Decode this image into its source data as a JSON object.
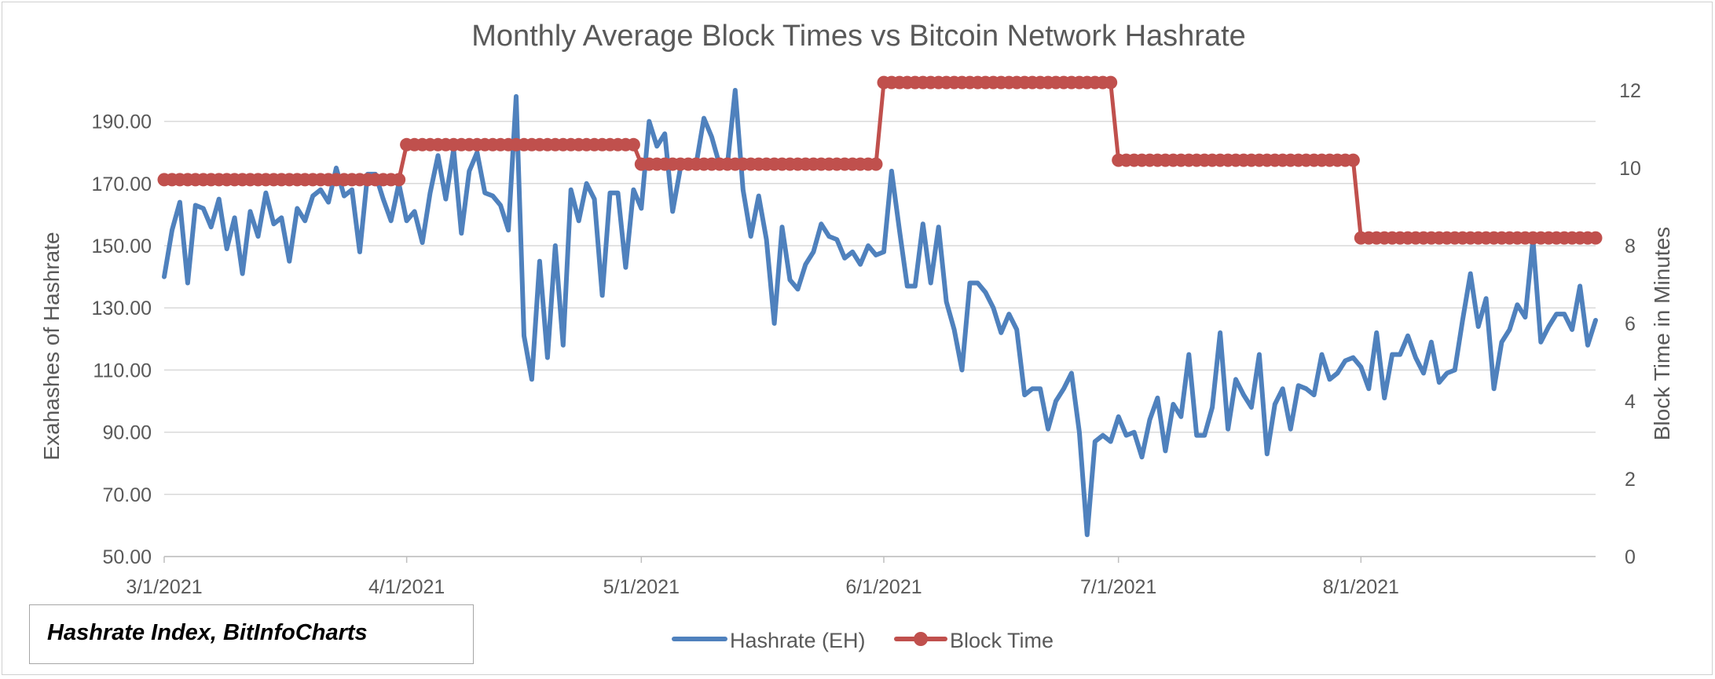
{
  "chart_data": {
    "type": "line",
    "title": "Monthly Average Block Times vs Bitcoin Network Hashrate",
    "ylabel": "Exahashes of Hashrate",
    "y2label": "Block Time in Minutes",
    "xlim": [
      "3/1/2021",
      "8/31/2021"
    ],
    "ylim": [
      50,
      200
    ],
    "y2lim": [
      0,
      12
    ],
    "y_ticks": [
      "50.00",
      "70.00",
      "90.00",
      "110.00",
      "130.00",
      "150.00",
      "170.00",
      "190.00"
    ],
    "y2_ticks": [
      "0",
      "2",
      "4",
      "6",
      "8",
      "10",
      "12"
    ],
    "x_ticks": [
      "3/1/2021",
      "4/1/2021",
      "5/1/2021",
      "6/1/2021",
      "7/1/2021",
      "8/1/2021"
    ],
    "grid": "horizontal",
    "legend": "bottom",
    "series": [
      {
        "name": "Hashrate (EH)",
        "axis": "left",
        "color": "#4f81bd",
        "x_start": "3/1/2021",
        "values": [
          140,
          155,
          164,
          138,
          163,
          162,
          156,
          165,
          149,
          159,
          141,
          161,
          153,
          167,
          157,
          159,
          145,
          162,
          158,
          166,
          168,
          164,
          175,
          166,
          168,
          148,
          173,
          173,
          165,
          158,
          170,
          158,
          161,
          151,
          167,
          179,
          165,
          181,
          154,
          174,
          180,
          167,
          166,
          163,
          155,
          198,
          121,
          107,
          145,
          114,
          150,
          118,
          168,
          158,
          170,
          165,
          134,
          167,
          167,
          143,
          168,
          162,
          190,
          182,
          186,
          161,
          175,
          176,
          176,
          191,
          185,
          176,
          176,
          200,
          168,
          153,
          166,
          152,
          125,
          156,
          139,
          136,
          144,
          148,
          157,
          153,
          152,
          146,
          148,
          144,
          150,
          147,
          148,
          174,
          155,
          137,
          137,
          157,
          138,
          156,
          132,
          123,
          110,
          138,
          138,
          135,
          130,
          122,
          128,
          123,
          102,
          104,
          104,
          91,
          100,
          104,
          109,
          90,
          57,
          87,
          89,
          87,
          95,
          89,
          90,
          82,
          94,
          101,
          84,
          99,
          95,
          115,
          89,
          89,
          98,
          122,
          91,
          107,
          102,
          98,
          115,
          83,
          99,
          104,
          91,
          105,
          104,
          102,
          115,
          107,
          109,
          113,
          114,
          111,
          104,
          122,
          101,
          115,
          115,
          121,
          114,
          109,
          119,
          106,
          109,
          110,
          126,
          141,
          124,
          133,
          104,
          119,
          123,
          131,
          127,
          152,
          119,
          124,
          128,
          128,
          123,
          137,
          118,
          126
        ]
      },
      {
        "name": "Block Time",
        "axis": "right",
        "color": "#c0504d",
        "segments": [
          {
            "from": "3/1/2021",
            "to": "3/31/2021",
            "value": 9.7
          },
          {
            "from": "4/1/2021",
            "to": "4/30/2021",
            "value": 10.6
          },
          {
            "from": "5/1/2021",
            "to": "5/31/2021",
            "value": 10.1
          },
          {
            "from": "6/1/2021",
            "to": "6/30/2021",
            "value": 12.2
          },
          {
            "from": "7/1/2021",
            "to": "7/31/2021",
            "value": 10.2
          },
          {
            "from": "8/1/2021",
            "to": "8/31/2021",
            "value": 8.2
          }
        ]
      }
    ]
  },
  "source_note": "Hashrate Index, BitInfoCharts"
}
